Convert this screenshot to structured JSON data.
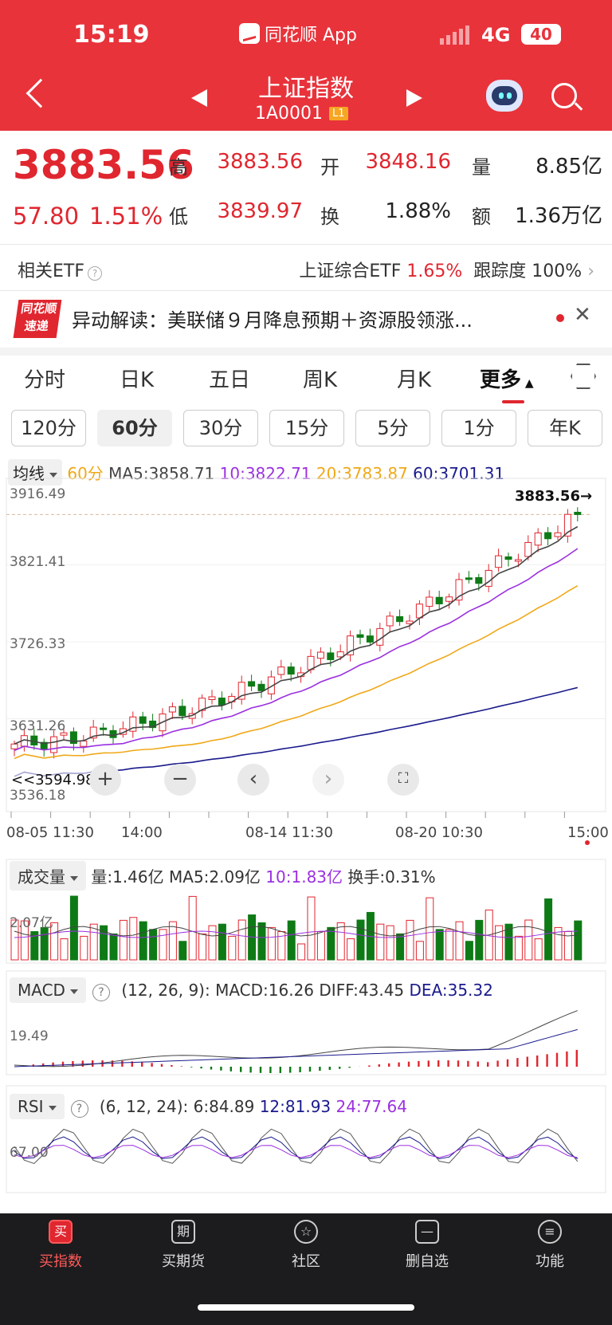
{
  "status_bar": {
    "time": "15:19",
    "app": "同花顺 App",
    "network": "4G",
    "battery": "40"
  },
  "header": {
    "title": "上证指数",
    "code": "1A0001",
    "level": "L1"
  },
  "quote": {
    "price": "3883.56",
    "change": "57.80",
    "change_pct": "1.51%",
    "high_label": "高",
    "high": "3883.56",
    "open_label": "开",
    "open": "3848.16",
    "vol_label": "量",
    "vol": "8.85亿",
    "low_label": "低",
    "low": "3839.97",
    "turn_label": "换",
    "turn": "1.88%",
    "amt_label": "额",
    "amt": "1.36万亿"
  },
  "etf": {
    "label": "相关ETF",
    "name": "上证综合ETF",
    "pct": "1.65%",
    "track_label": "跟踪度",
    "track": "100%"
  },
  "news": {
    "logo_top": "同花顺",
    "logo_bottom": "速递",
    "text": "异动解读：美联储９月降息预期＋资源股领涨..."
  },
  "tabs": [
    "分时",
    "日K",
    "五日",
    "周K",
    "月K",
    "更多"
  ],
  "periods": [
    "120分",
    "60分",
    "30分",
    "15分",
    "5分",
    "1分",
    "年K"
  ],
  "ma": {
    "selector": "均线",
    "period": "60分",
    "ma5": "MA5:3858.71",
    "ma10": "10:3822.71",
    "ma20": "20:3783.87",
    "ma60": "60:3701.31"
  },
  "colors": {
    "up": "#e0262f",
    "down": "#0e7a16",
    "ma5": "#444444",
    "ma10": "#9b30e0",
    "ma20": "#f0a818",
    "ma60": "#1a1a8c"
  },
  "price_labels": [
    "3916.49",
    "3821.41",
    "3726.33",
    "3631.26",
    "3536.18"
  ],
  "last_price_tag": "3883.56→",
  "low_marker": "3594.98",
  "x_labels": [
    "08-05 11:30",
    "14:00",
    "08-14 11:30",
    "08-20 10:30",
    "15:00"
  ],
  "volume": {
    "selector": "成交量",
    "vol": "量:1.46亿",
    "ma5": "MA5:2.09亿",
    "ma10": "10:1.83亿",
    "turnover": "换手:0.31%",
    "ylabel": "2.07亿"
  },
  "macd": {
    "selector": "MACD",
    "params": "(12, 26, 9):",
    "macd": "MACD:16.26",
    "diff": "DIFF:43.45",
    "dea": "DEA:35.32",
    "ylabel": "19.49"
  },
  "rsi": {
    "selector": "RSI",
    "params": "(6, 12, 24):",
    "r6": "6:84.89",
    "r12": "12:81.93",
    "r24": "24:77.64",
    "ylabel": "67.00"
  },
  "tabbar": [
    {
      "label": "买指数",
      "icon": "买"
    },
    {
      "label": "买期货",
      "icon": "期"
    },
    {
      "label": "社区",
      "icon": "☆"
    },
    {
      "label": "删自选",
      "icon": "—"
    },
    {
      "label": "功能",
      "icon": "≡"
    }
  ],
  "chart_data": {
    "type": "candlestick",
    "interval": "60分",
    "ylim": [
      3536.18,
      3916.49
    ],
    "y_ticks": [
      3916.49,
      3821.41,
      3726.33,
      3631.26,
      3536.18
    ],
    "last": 3883.56,
    "low": 3594.98,
    "x_ticks": [
      "08-05 11:30",
      "14:00",
      "08-14 11:30",
      "08-20 10:30",
      "15:00"
    ],
    "ma": {
      "MA5": 3858.71,
      "MA10": 3822.71,
      "MA20": 3783.87,
      "MA60": 3701.31
    }
  }
}
